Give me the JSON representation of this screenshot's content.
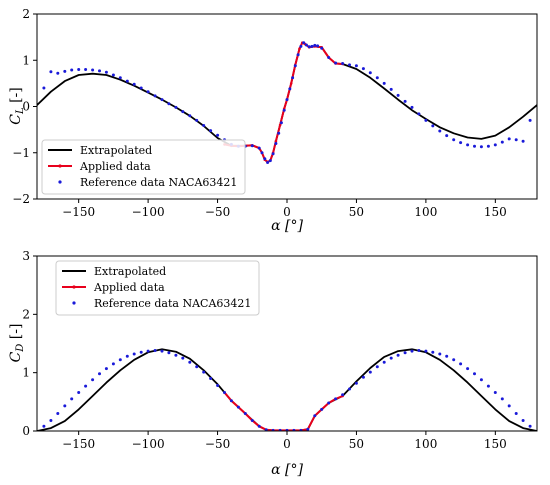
{
  "chart_data": [
    {
      "type": "line",
      "id": "cl",
      "xlabel": "α [°]",
      "ylabel": "C_L [-]",
      "ylabel_main": "C",
      "ylabel_sub": "L",
      "ylabel_unit": " [-]",
      "xlim": [
        -180,
        180
      ],
      "ylim": [
        -2,
        2
      ],
      "xticks": [
        -150,
        -100,
        -50,
        0,
        50,
        100,
        150
      ],
      "yticks": [
        -2,
        -1,
        0,
        1,
        2
      ],
      "grid": false,
      "legend_placement": "lower-left",
      "series": [
        {
          "name": "Extrapolated",
          "style": "line",
          "color": "#000000",
          "x": [
            -180,
            -170,
            -160,
            -150,
            -140,
            -130,
            -120,
            -110,
            -100,
            -90,
            -80,
            -70,
            -60,
            -50,
            -40,
            -30,
            -25,
            -20,
            -18,
            -16,
            -14,
            -12,
            -10,
            -8,
            -5,
            -2,
            0,
            3,
            6,
            9,
            11,
            13,
            16,
            20,
            25,
            30,
            35,
            40,
            50,
            60,
            70,
            80,
            90,
            100,
            110,
            120,
            130,
            140,
            150,
            160,
            170,
            180
          ],
          "y": [
            0.03,
            0.32,
            0.55,
            0.68,
            0.71,
            0.68,
            0.58,
            0.45,
            0.3,
            0.15,
            -0.02,
            -0.2,
            -0.42,
            -0.68,
            -0.85,
            -0.85,
            -0.84,
            -0.9,
            -1.0,
            -1.15,
            -1.2,
            -1.17,
            -1.0,
            -0.75,
            -0.4,
            -0.05,
            0.15,
            0.5,
            0.9,
            1.25,
            1.38,
            1.35,
            1.28,
            1.3,
            1.28,
            1.06,
            0.93,
            0.92,
            0.81,
            0.62,
            0.39,
            0.15,
            -0.08,
            -0.27,
            -0.45,
            -0.58,
            -0.67,
            -0.7,
            -0.63,
            -0.45,
            -0.22,
            0.03
          ]
        },
        {
          "name": "Applied data",
          "style": "line",
          "color": "#e8001c",
          "x": [
            -45,
            -40,
            -35,
            -30,
            -25,
            -20,
            -18,
            -16,
            -14,
            -12,
            -10,
            -8,
            -5,
            -2,
            0,
            3,
            6,
            9,
            11,
            13,
            16,
            20,
            25,
            30,
            35,
            40
          ],
          "y": [
            -0.82,
            -0.85,
            -0.86,
            -0.85,
            -0.84,
            -0.9,
            -1.0,
            -1.15,
            -1.2,
            -1.17,
            -1.0,
            -0.75,
            -0.4,
            -0.05,
            0.15,
            0.5,
            0.9,
            1.25,
            1.38,
            1.35,
            1.28,
            1.3,
            1.28,
            1.06,
            0.93,
            0.92
          ]
        },
        {
          "name": "Reference data NACA63421",
          "style": "dots",
          "color": "#1a1ad9",
          "x": [
            -175,
            -170,
            -165,
            -160,
            -155,
            -150,
            -145,
            -140,
            -135,
            -130,
            -125,
            -120,
            -115,
            -110,
            -105,
            -100,
            -95,
            -90,
            -85,
            -80,
            -75,
            -70,
            -65,
            -60,
            -55,
            -50,
            -45,
            -40,
            -35,
            -30,
            -25,
            -20,
            -18,
            -16,
            -14,
            -12,
            -10,
            -8,
            -6,
            -4,
            -2,
            0,
            2,
            4,
            6,
            8,
            10,
            12,
            14,
            16,
            18,
            20,
            22,
            25,
            30,
            35,
            40,
            45,
            50,
            55,
            60,
            65,
            70,
            75,
            80,
            85,
            90,
            95,
            100,
            105,
            110,
            115,
            120,
            125,
            130,
            135,
            140,
            145,
            150,
            155,
            160,
            165,
            170,
            175
          ],
          "y": [
            0.4,
            0.75,
            0.72,
            0.76,
            0.79,
            0.8,
            0.8,
            0.79,
            0.77,
            0.74,
            0.68,
            0.62,
            0.55,
            0.48,
            0.4,
            0.32,
            0.23,
            0.15,
            0.06,
            -0.02,
            -0.11,
            -0.2,
            -0.3,
            -0.41,
            -0.52,
            -0.62,
            -0.72,
            -0.82,
            -0.86,
            -0.86,
            -0.85,
            -0.9,
            -1.0,
            -1.13,
            -1.21,
            -1.17,
            -1.02,
            -0.8,
            -0.58,
            -0.35,
            -0.08,
            0.15,
            0.38,
            0.62,
            0.88,
            1.12,
            1.3,
            1.38,
            1.33,
            1.29,
            1.3,
            1.32,
            1.31,
            1.26,
            1.06,
            0.94,
            0.93,
            0.9,
            0.88,
            0.82,
            0.73,
            0.62,
            0.5,
            0.37,
            0.24,
            0.11,
            -0.02,
            -0.16,
            -0.3,
            -0.42,
            -0.53,
            -0.63,
            -0.72,
            -0.78,
            -0.83,
            -0.86,
            -0.87,
            -0.86,
            -0.83,
            -0.77,
            -0.7,
            -0.72,
            -0.75,
            -0.3
          ]
        }
      ]
    },
    {
      "type": "line",
      "id": "cd",
      "xlabel": "α [°]",
      "ylabel": "C_D [-]",
      "ylabel_main": "C",
      "ylabel_sub": "D",
      "ylabel_unit": " [-]",
      "xlim": [
        -180,
        180
      ],
      "ylim": [
        0,
        3
      ],
      "xticks": [
        -150,
        -100,
        -50,
        0,
        50,
        100,
        150
      ],
      "yticks": [
        0,
        1,
        2,
        3
      ],
      "grid": false,
      "legend_placement": "top-left",
      "series": [
        {
          "name": "Extrapolated",
          "style": "line",
          "color": "#000000",
          "x": [
            -180,
            -170,
            -160,
            -150,
            -140,
            -130,
            -120,
            -110,
            -100,
            -90,
            -80,
            -70,
            -60,
            -50,
            -40,
            -30,
            -20,
            -15,
            -10,
            -5,
            0,
            5,
            10,
            15,
            20,
            30,
            40,
            50,
            60,
            70,
            80,
            90,
            100,
            110,
            120,
            130,
            140,
            150,
            160,
            170,
            180
          ],
          "y": [
            0.0,
            0.05,
            0.17,
            0.37,
            0.6,
            0.83,
            1.04,
            1.22,
            1.35,
            1.4,
            1.36,
            1.24,
            1.04,
            0.8,
            0.52,
            0.3,
            0.08,
            0.02,
            0.01,
            0.01,
            0.01,
            0.01,
            0.01,
            0.03,
            0.26,
            0.48,
            0.6,
            0.85,
            1.08,
            1.27,
            1.37,
            1.4,
            1.35,
            1.22,
            1.04,
            0.83,
            0.6,
            0.37,
            0.17,
            0.05,
            0.0
          ]
        },
        {
          "name": "Applied data",
          "style": "line",
          "color": "#e8001c",
          "x": [
            -45,
            -40,
            -35,
            -30,
            -25,
            -20,
            -15,
            -10,
            -5,
            0,
            5,
            10,
            15,
            20,
            25,
            30,
            35,
            40
          ],
          "y": [
            0.66,
            0.52,
            0.41,
            0.3,
            0.18,
            0.08,
            0.02,
            0.01,
            0.01,
            0.01,
            0.01,
            0.01,
            0.03,
            0.26,
            0.37,
            0.48,
            0.55,
            0.6
          ]
        },
        {
          "name": "Reference data NACA63421",
          "style": "dots",
          "color": "#1a1ad9",
          "x": [
            -175,
            -170,
            -165,
            -160,
            -155,
            -150,
            -145,
            -140,
            -135,
            -130,
            -125,
            -120,
            -115,
            -110,
            -105,
            -100,
            -95,
            -90,
            -85,
            -80,
            -75,
            -70,
            -65,
            -60,
            -55,
            -50,
            -45,
            -40,
            -35,
            -30,
            -25,
            -20,
            -15,
            -10,
            -5,
            0,
            5,
            10,
            15,
            20,
            25,
            30,
            35,
            40,
            45,
            50,
            55,
            60,
            65,
            70,
            75,
            80,
            85,
            90,
            95,
            100,
            105,
            110,
            115,
            120,
            125,
            130,
            135,
            140,
            145,
            150,
            155,
            160,
            165,
            170,
            175
          ],
          "y": [
            0.08,
            0.18,
            0.3,
            0.43,
            0.55,
            0.66,
            0.77,
            0.88,
            0.98,
            1.07,
            1.15,
            1.22,
            1.28,
            1.32,
            1.35,
            1.37,
            1.38,
            1.37,
            1.34,
            1.3,
            1.25,
            1.18,
            1.1,
            1.01,
            0.9,
            0.78,
            0.66,
            0.52,
            0.41,
            0.3,
            0.18,
            0.08,
            0.02,
            0.01,
            0.01,
            0.01,
            0.01,
            0.01,
            0.03,
            0.26,
            0.37,
            0.48,
            0.55,
            0.62,
            0.72,
            0.82,
            0.92,
            1.01,
            1.1,
            1.18,
            1.25,
            1.3,
            1.34,
            1.37,
            1.38,
            1.37,
            1.35,
            1.32,
            1.28,
            1.22,
            1.15,
            1.07,
            0.98,
            0.88,
            0.77,
            0.66,
            0.55,
            0.43,
            0.3,
            0.18,
            0.08
          ]
        }
      ]
    }
  ]
}
